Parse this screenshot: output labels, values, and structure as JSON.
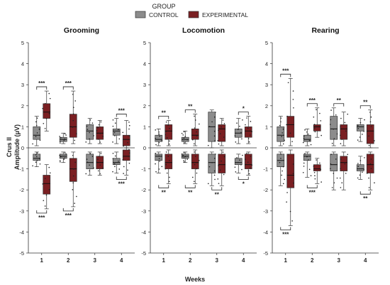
{
  "chart_data": {
    "type": "boxplot",
    "legend": {
      "title": "GROUP",
      "placement": "top-center",
      "entries": [
        {
          "name": "CONTROL",
          "color": "#8c8c8c"
        },
        {
          "name": "EXPERIMENTAL",
          "color": "#7a1f22"
        }
      ]
    },
    "ylabel_line1": "Crus II",
    "ylabel_line2": "Amplitude (μV)",
    "xlabel": "Weeks",
    "categories": [
      "1",
      "2",
      "3",
      "4"
    ],
    "ylim": [
      -5,
      5
    ],
    "yticks": [
      -5,
      -4,
      -3,
      -2,
      -1,
      0,
      1,
      2,
      3,
      4,
      5
    ],
    "panels": [
      {
        "title": "Grooming",
        "positive": {
          "control": [
            {
              "q1": 0.4,
              "median": 0.6,
              "q3": 1.0,
              "min": 0.1,
              "max": 1.5
            },
            {
              "q1": 0.3,
              "median": 0.4,
              "q3": 0.5,
              "min": 0.2,
              "max": 0.7
            },
            {
              "q1": 0.4,
              "median": 0.8,
              "q3": 1.1,
              "min": 0.2,
              "max": 1.4
            },
            {
              "q1": 0.6,
              "median": 0.8,
              "q3": 0.9,
              "min": 0.2,
              "max": 1.4
            }
          ],
          "experimental": [
            {
              "q1": 1.4,
              "median": 1.7,
              "q3": 2.1,
              "min": 0.8,
              "max": 2.7
            },
            {
              "q1": 0.5,
              "median": 1.0,
              "q3": 1.6,
              "min": 0.2,
              "max": 2.7
            },
            {
              "q1": 0.4,
              "median": 0.7,
              "q3": 1.0,
              "min": 0.2,
              "max": 1.3
            },
            {
              "q1": 0.1,
              "median": 0.4,
              "q3": 0.6,
              "min": 0.0,
              "max": 1.3
            }
          ]
        },
        "negative": {
          "control": [
            {
              "q1": -0.6,
              "median": -0.5,
              "q3": -0.3,
              "min": -0.9,
              "max": -0.2
            },
            {
              "q1": -0.5,
              "median": -0.4,
              "q3": -0.3,
              "min": -0.7,
              "max": -0.2
            },
            {
              "q1": -1.0,
              "median": -0.7,
              "q3": -0.3,
              "min": -1.3,
              "max": -0.2
            },
            {
              "q1": -0.8,
              "median": -0.7,
              "q3": -0.5,
              "min": -1.2,
              "max": -0.2
            }
          ],
          "experimental": [
            {
              "q1": -2.2,
              "median": -1.7,
              "q3": -1.3,
              "min": -2.9,
              "max": -0.8
            },
            {
              "q1": -1.6,
              "median": -1.0,
              "q3": -0.5,
              "min": -2.8,
              "max": -0.2
            },
            {
              "q1": -1.0,
              "median": -0.7,
              "q3": -0.4,
              "min": -1.3,
              "max": -0.2
            },
            {
              "q1": -0.6,
              "median": -0.4,
              "q3": -0.1,
              "min": -1.3,
              "max": 0.0
            }
          ]
        },
        "significance_top": [
          "***",
          "***",
          "",
          "***"
        ],
        "significance_bottom": [
          "***",
          "***",
          "",
          "***"
        ]
      },
      {
        "title": "Locomotion",
        "positive": {
          "control": [
            {
              "q1": 0.3,
              "median": 0.4,
              "q3": 0.6,
              "min": 0.1,
              "max": 0.9
            },
            {
              "q1": 0.3,
              "median": 0.4,
              "q3": 0.5,
              "min": 0.2,
              "max": 0.8
            },
            {
              "q1": 0.3,
              "median": 1.0,
              "q3": 1.7,
              "min": 0.0,
              "max": 1.8
            },
            {
              "q1": 0.5,
              "median": 0.7,
              "q3": 0.9,
              "min": 0.2,
              "max": 1.4
            }
          ],
          "experimental": [
            {
              "q1": 0.4,
              "median": 0.8,
              "q3": 1.1,
              "min": 0.1,
              "max": 1.3
            },
            {
              "q1": 0.4,
              "median": 0.6,
              "q3": 0.9,
              "min": 0.1,
              "max": 1.6
            },
            {
              "q1": 0.3,
              "median": 0.9,
              "q3": 1.1,
              "min": 0.1,
              "max": 1.4
            },
            {
              "q1": 0.5,
              "median": 0.8,
              "q3": 1.0,
              "min": 0.2,
              "max": 1.5
            }
          ]
        },
        "negative": {
          "control": [
            {
              "q1": -0.6,
              "median": -0.4,
              "q3": -0.3,
              "min": -1.2,
              "max": -0.2
            },
            {
              "q1": -0.5,
              "median": -0.4,
              "q3": -0.3,
              "min": -0.7,
              "max": -0.2
            },
            {
              "q1": -1.2,
              "median": -0.7,
              "q3": -0.3,
              "min": -1.8,
              "max": -0.2
            },
            {
              "q1": -0.8,
              "median": -0.7,
              "q3": -0.5,
              "min": -1.2,
              "max": -0.3
            }
          ],
          "experimental": [
            {
              "q1": -1.0,
              "median": -0.7,
              "q3": -0.3,
              "min": -1.7,
              "max": -0.1
            },
            {
              "q1": -1.0,
              "median": -0.7,
              "q3": -0.3,
              "min": -1.7,
              "max": -0.1
            },
            {
              "q1": -1.2,
              "median": -0.8,
              "q3": -0.3,
              "min": -1.8,
              "max": -0.1
            },
            {
              "q1": -1.0,
              "median": -0.8,
              "q3": -0.3,
              "min": -1.3,
              "max": -0.2
            }
          ]
        },
        "significance_top": [
          "**",
          "**",
          "",
          "*"
        ],
        "significance_bottom": [
          "**",
          "**",
          "**",
          "*"
        ]
      },
      {
        "title": "Rearing",
        "positive": {
          "control": [
            {
              "q1": 0.3,
              "median": 0.6,
              "q3": 1.0,
              "min": 0.1,
              "max": 1.5
            },
            {
              "q1": 0.3,
              "median": 0.4,
              "q3": 0.6,
              "min": 0.1,
              "max": 0.9
            },
            {
              "q1": 0.4,
              "median": 0.9,
              "q3": 1.5,
              "min": 0.1,
              "max": 1.9
            },
            {
              "q1": 0.8,
              "median": 1.0,
              "q3": 1.1,
              "min": 0.3,
              "max": 1.4
            }
          ],
          "experimental": [
            {
              "q1": 0.5,
              "median": 1.1,
              "q3": 1.5,
              "min": 0.1,
              "max": 3.3
            },
            {
              "q1": 0.8,
              "median": 1.0,
              "q3": 1.1,
              "min": 0.5,
              "max": 1.9
            },
            {
              "q1": 0.4,
              "median": 0.9,
              "q3": 1.1,
              "min": 0.1,
              "max": 1.7
            },
            {
              "q1": 0.2,
              "median": 0.8,
              "q3": 1.1,
              "min": 0.0,
              "max": 1.8
            }
          ]
        },
        "negative": {
          "control": [
            {
              "q1": -0.9,
              "median": -0.6,
              "q3": -0.3,
              "min": -1.8,
              "max": -0.2
            },
            {
              "q1": -0.6,
              "median": -0.4,
              "q3": -0.3,
              "min": -1.4,
              "max": -0.2
            },
            {
              "q1": -1.1,
              "median": -0.8,
              "q3": -0.3,
              "min": -2.0,
              "max": -0.2
            },
            {
              "q1": -1.1,
              "median": -1.0,
              "q3": -0.8,
              "min": -1.5,
              "max": -0.4
            }
          ],
          "experimental": [
            {
              "q1": -1.9,
              "median": -1.3,
              "q3": -0.3,
              "min": -3.7,
              "max": -0.1
            },
            {
              "q1": -1.1,
              "median": -1.0,
              "q3": -0.8,
              "min": -1.7,
              "max": -0.5
            },
            {
              "q1": -1.1,
              "median": -0.7,
              "q3": -0.4,
              "min": -2.0,
              "max": -0.2
            },
            {
              "q1": -1.2,
              "median": -0.8,
              "q3": -0.3,
              "min": -2.0,
              "max": -0.2
            }
          ]
        },
        "significance_top": [
          "***",
          "***",
          "**",
          "**"
        ],
        "significance_bottom": [
          "***",
          "***",
          "",
          "**"
        ]
      }
    ]
  }
}
